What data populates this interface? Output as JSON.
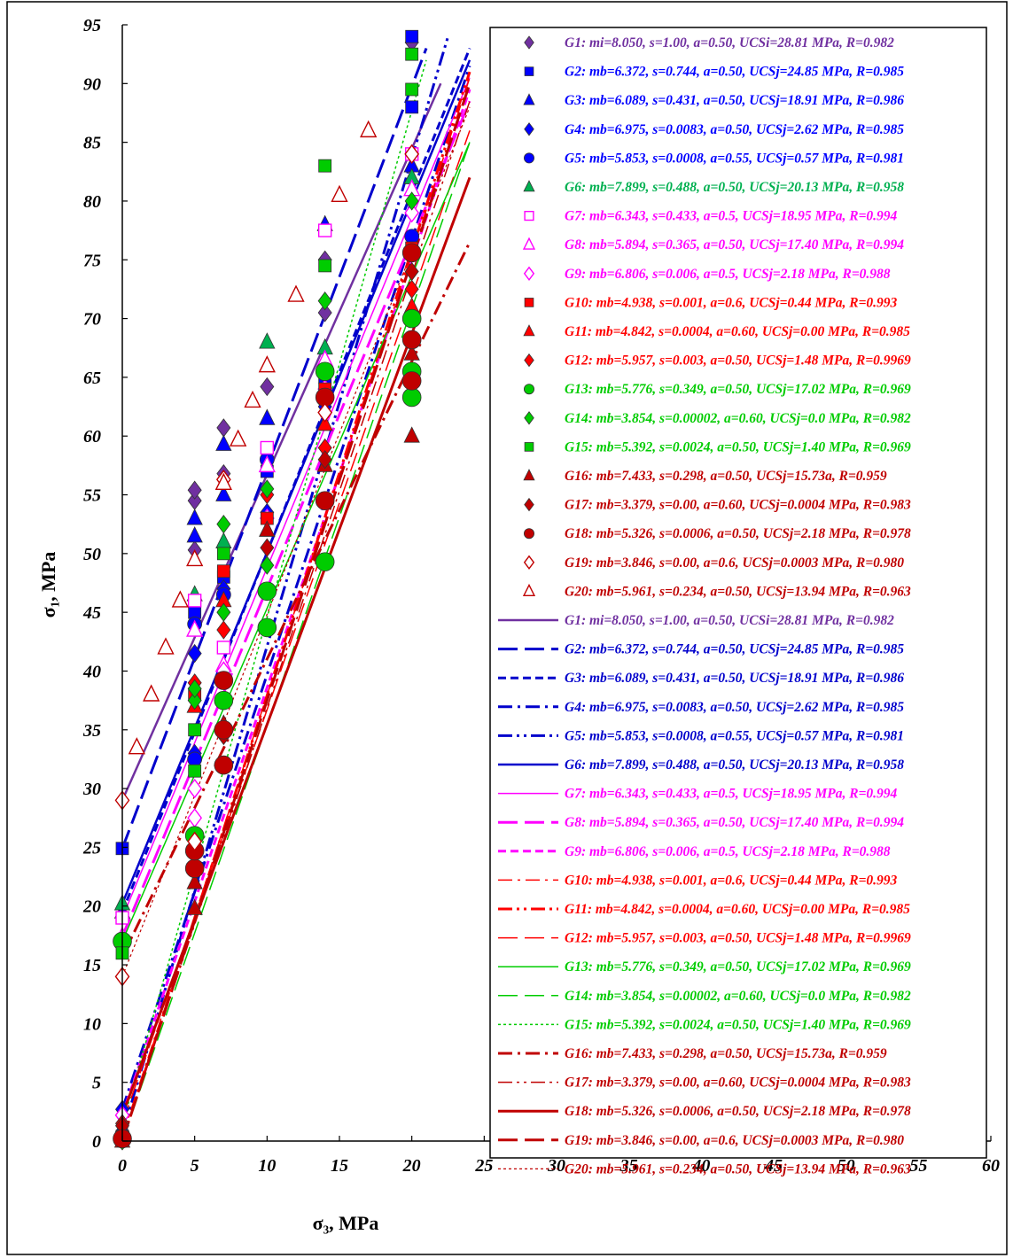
{
  "chart_data": {
    "type": "scatter",
    "xlabel": "σ₃, MPa",
    "ylabel": "σ₁, MPa",
    "xlim": [
      0,
      60
    ],
    "ylim": [
      0,
      95
    ],
    "xticks": [
      0,
      5,
      10,
      15,
      20,
      25,
      30,
      35,
      40,
      45,
      50,
      55,
      60
    ],
    "yticks": [
      0,
      5,
      10,
      15,
      20,
      25,
      30,
      35,
      40,
      45,
      50,
      55,
      60,
      65,
      70,
      75,
      80,
      85,
      90,
      95
    ],
    "grid": false,
    "legend": "right",
    "series": [
      {
        "name": "G1: mi=8.050, s=1.00, a=0.50, UCSi=28.81 MPa, R=0.982",
        "color": "#7030A0",
        "marker": "diamond",
        "x": [
          0,
          5,
          5,
          5,
          7,
          7,
          10,
          14,
          14,
          20
        ],
        "y": [
          29,
          50.3,
          54.5,
          55.4,
          56.8,
          60.7,
          64.2,
          70.5,
          75,
          93.5
        ]
      },
      {
        "name": "G2: mb=6.372, s=0.744, a=0.50, UCSj=24.85 MPa, R=0.985",
        "color": "#0000FF",
        "marker": "square",
        "x": [
          0,
          5,
          7,
          10,
          14,
          20,
          20
        ],
        "y": [
          24.9,
          45,
          48,
          57,
          65,
          88,
          94
        ]
      },
      {
        "name": "G3: mb=6.089, s=0.431, a=0.50, UCSj=18.91 MPa, R=0.986",
        "color": "#0000FF",
        "marker": "triangle",
        "x": [
          0,
          5,
          5,
          7,
          7,
          10,
          14,
          20
        ],
        "y": [
          19.5,
          51.5,
          53,
          55,
          59.3,
          61.5,
          78,
          83
        ]
      },
      {
        "name": "G4: mb=6.975, s=0.0083, a=0.50, UCSj=2.62 MPa, R=0.985",
        "color": "#0000FF",
        "marker": "diamond",
        "x": [
          0,
          5,
          5,
          7,
          10,
          14,
          20
        ],
        "y": [
          2.7,
          33,
          41.5,
          47,
          53.5,
          62.5,
          76
        ]
      },
      {
        "name": "G5: mb=5.853, s=0.0008, a=0.55, UCSj=0.57 MPa, R=0.981",
        "color": "#0000FF",
        "marker": "circle",
        "x": [
          0,
          5,
          5,
          7,
          10,
          14,
          20
        ],
        "y": [
          0.6,
          32.5,
          44,
          46.5,
          58,
          65.5,
          77
        ]
      },
      {
        "name": "G6: mb=7.899, s=0.488, a=0.50, UCSj=20.13 MPa, R=0.958",
        "color": "#00B050",
        "marker": "triangle",
        "x": [
          0,
          5,
          7,
          10,
          14,
          20
        ],
        "y": [
          20.2,
          46.5,
          51,
          68,
          67.5,
          82
        ]
      },
      {
        "name": "G7: mb=6.343, s=0.433, a=0.5, UCSj=18.95 MPa, R=0.994",
        "color": "#FF00FF",
        "marker": "square-open",
        "x": [
          0,
          5,
          7,
          10,
          14,
          20
        ],
        "y": [
          19,
          46,
          42,
          59,
          77.5,
          84
        ]
      },
      {
        "name": "G8: mb=5.894, s=0.365, a=0.50, UCSj=17.40 MPa, R=0.994",
        "color": "#FF00FF",
        "marker": "triangle-open",
        "x": [
          0,
          5,
          7,
          10,
          14,
          20
        ],
        "y": [
          17.4,
          43.5,
          40.5,
          57.5,
          66.5,
          81
        ]
      },
      {
        "name": "G9: mb=6.806, s=0.006, a=0.5, UCSj=2.18 MPa, R=0.988",
        "color": "#FF00FF",
        "marker": "diamond-open",
        "x": [
          0,
          5,
          5,
          7,
          10,
          14,
          20
        ],
        "y": [
          2.2,
          27.5,
          30,
          40,
          53,
          64,
          79
        ]
      },
      {
        "name": "G10: mb=4.938, s=0.001, a=0.6, UCSj=0.44 MPa, R=0.993",
        "color": "#FF0000",
        "marker": "square",
        "x": [
          0,
          5,
          7,
          10,
          14,
          20
        ],
        "y": [
          0.4,
          38,
          48.5,
          53,
          64,
          76
        ]
      },
      {
        "name": "G11: mb=4.842, s=0.0004, a=0.60, UCSj=0.00 MPa, R=0.985",
        "color": "#FF0000",
        "marker": "triangle",
        "x": [
          0,
          5,
          7,
          10,
          14,
          20
        ],
        "y": [
          0,
          37,
          46,
          52,
          61,
          71
        ]
      },
      {
        "name": "G12: mb=5.957, s=0.003, a=0.50, UCSj=1.48 MPa, R=0.9969",
        "color": "#FF0000",
        "marker": "diamond",
        "x": [
          0,
          5,
          7,
          10,
          14,
          20
        ],
        "y": [
          1.5,
          39,
          43.5,
          55,
          59,
          72.5
        ]
      },
      {
        "name": "G13: mb=5.776, s=0.349, a=0.50, UCSj=17.02 MPa, R=0.969",
        "color": "#00CC00",
        "marker": "circle",
        "x": [
          0,
          5,
          7,
          10,
          10,
          14,
          14,
          20,
          20,
          20
        ],
        "y": [
          17,
          26,
          37.5,
          43.7,
          46.8,
          49.3,
          65.5,
          63.3,
          65.5,
          70
        ]
      },
      {
        "name": "G14: mb=3.854, s=0.00002, a=0.60, UCSj=0.0 MPa, R=0.982",
        "color": "#00CC00",
        "marker": "diamond",
        "x": [
          0,
          5,
          5,
          7,
          7,
          10,
          10,
          14,
          20
        ],
        "y": [
          0,
          37.5,
          38.5,
          45,
          52.5,
          49,
          55.5,
          71.5,
          80
        ]
      },
      {
        "name": "G15: mb=5.392, s=0.0024, a=0.50, UCSj=1.40 MPa, R=0.969",
        "color": "#00CC00",
        "marker": "square",
        "x": [
          0,
          5,
          5,
          7,
          14,
          14,
          20,
          20
        ],
        "y": [
          16,
          31.5,
          35,
          50,
          74.5,
          83,
          89.5,
          92.5
        ]
      },
      {
        "name": "G16: mb=7.433, s=0.298, a=0.50, UCSj=15.73a, R=0.959",
        "color": "#C00000",
        "marker": "triangle",
        "x": [
          0,
          5,
          5,
          7,
          10,
          14,
          20,
          20
        ],
        "y": [
          0.3,
          19.8,
          22,
          35.5,
          52,
          57.5,
          60,
          67
        ]
      },
      {
        "name": "G17: mb=3.379, s=0.00, a=0.60, UCSj=0.0004 MPa, R=0.983",
        "color": "#C00000",
        "marker": "diamond",
        "x": [
          0,
          5,
          7,
          10,
          14,
          20
        ],
        "y": [
          1.3,
          25.5,
          34.5,
          50.5,
          58,
          74
        ]
      },
      {
        "name": "G18: mb=5.326, s=0.0006, a=0.50, UCSj=2.18 MPa, R=0.978",
        "color": "#C00000",
        "marker": "circle",
        "x": [
          0,
          5,
          5,
          7,
          7,
          7,
          14,
          14,
          20,
          20,
          20
        ],
        "y": [
          0.2,
          23.2,
          24.7,
          32,
          35,
          39.2,
          54.5,
          63.3,
          64.7,
          68.2,
          75.6
        ]
      },
      {
        "name": "G19: mb=3.846, s=0.00, a=0.6, UCSj=0.0003 MPa, R=0.980",
        "color": "#C00000",
        "marker": "diamond-open",
        "x": [
          0,
          0,
          5,
          7,
          14,
          20
        ],
        "y": [
          14,
          29,
          25.5,
          56.3,
          62,
          84
        ]
      },
      {
        "name": "G20: mb=5.961, s=0.234, a=0.50, UCSj=13.94 MPa, R=0.963",
        "color": "#C00000",
        "marker": "triangle-open",
        "x": [
          1,
          2,
          3,
          4,
          5,
          7,
          8,
          9,
          10,
          12,
          15,
          17
        ],
        "y": [
          33.5,
          38,
          42,
          46,
          49.5,
          56,
          59.7,
          63,
          66,
          72,
          80.5,
          86
        ]
      }
    ],
    "fit_lines": [
      {
        "name": "G1: mi=8.050, s=1.00, a=0.50, UCSi=28.81 MPa, R=0.982",
        "color": "#7030A0",
        "dash": "solid",
        "width": 2.5,
        "x": [
          0,
          22
        ],
        "y": [
          29,
          90
        ]
      },
      {
        "name": "G2: mb=6.372, s=0.744, a=0.50, UCSj=24.85 MPa, R=0.985",
        "color": "#0000CC",
        "dash": "longdash",
        "width": 3,
        "x": [
          0,
          21
        ],
        "y": [
          24.9,
          93
        ]
      },
      {
        "name": "G3: mb=6.089, s=0.431, a=0.50, UCSj=18.91 MPa, R=0.986",
        "color": "#0000CC",
        "dash": "dash",
        "width": 3,
        "x": [
          0,
          24
        ],
        "y": [
          19.5,
          93
        ]
      },
      {
        "name": "G4: mb=6.975, s=0.0083, a=0.50, UCSj=2.62 MPa, R=0.985",
        "color": "#0000CC",
        "dash": "dashdot",
        "width": 3,
        "x": [
          0,
          24
        ],
        "y": [
          2.7,
          91.5
        ]
      },
      {
        "name": "G5: mb=5.853, s=0.0008, a=0.55, UCSj=0.57 MPa, R=0.981",
        "color": "#0000CC",
        "dash": "dashdotdot",
        "width": 3,
        "x": [
          0,
          22.5
        ],
        "y": [
          0.6,
          94
        ]
      },
      {
        "name": "G6: mb=7.899, s=0.488, a=0.50, UCSj=20.13 MPa, R=0.958",
        "color": "#0000CC",
        "dash": "solid",
        "width": 2.5,
        "x": [
          0,
          24
        ],
        "y": [
          20.2,
          92
        ]
      },
      {
        "name": "G7: mb=6.343, s=0.433, a=0.5, UCSj=18.95 MPa, R=0.994",
        "color": "#FF00FF",
        "dash": "solid",
        "width": 1.5,
        "x": [
          0,
          24
        ],
        "y": [
          19,
          90.5
        ]
      },
      {
        "name": "G8: mb=5.894, s=0.365, a=0.50, UCSj=17.40 MPa, R=0.994",
        "color": "#FF00FF",
        "dash": "longdash",
        "width": 3,
        "x": [
          0,
          24
        ],
        "y": [
          17.4,
          88.5
        ]
      },
      {
        "name": "G9: mb=6.806, s=0.006, a=0.5, UCSj=2.18 MPa, R=0.988",
        "color": "#FF00FF",
        "dash": "dash",
        "width": 3,
        "x": [
          0,
          24
        ],
        "y": [
          2.2,
          89.5
        ]
      },
      {
        "name": "G10: mb=4.938, s=0.001, a=0.6, UCSj=0.44 MPa, R=0.993",
        "color": "#FF0000",
        "dash": "dashdot",
        "width": 1.5,
        "x": [
          0,
          24
        ],
        "y": [
          0.4,
          90.5
        ]
      },
      {
        "name": "G11: mb=4.842, s=0.0004, a=0.60, UCSj=0.00 MPa, R=0.985",
        "color": "#FF0000",
        "dash": "dashdotdot",
        "width": 3,
        "x": [
          0,
          24
        ],
        "y": [
          0,
          91
        ]
      },
      {
        "name": "G12: mb=5.957, s=0.003, a=0.50, UCSj=1.48 MPa, R=0.9969",
        "color": "#FF0000",
        "dash": "longdash",
        "width": 1.5,
        "x": [
          0,
          24
        ],
        "y": [
          1.5,
          86
        ]
      },
      {
        "name": "G13: mb=5.776, s=0.349, a=0.50, UCSj=17.02 MPa, R=0.969",
        "color": "#00CC00",
        "dash": "solid",
        "width": 1.5,
        "x": [
          0,
          24
        ],
        "y": [
          17,
          85
        ]
      },
      {
        "name": "G14: mb=3.854, s=0.00002, a=0.60, UCSj=0.0 MPa, R=0.982",
        "color": "#00CC00",
        "dash": "longdash",
        "width": 1.5,
        "x": [
          0,
          24
        ],
        "y": [
          0,
          85
        ]
      },
      {
        "name": "G15: mb=5.392, s=0.0024, a=0.50, UCSj=1.40 MPa, R=0.969",
        "color": "#00CC00",
        "dash": "dot",
        "width": 1.5,
        "x": [
          0,
          21
        ],
        "y": [
          1.4,
          92
        ]
      },
      {
        "name": "G16: mb=7.433, s=0.298, a=0.50, UCSj=15.73a, R=0.959",
        "color": "#C00000",
        "dash": "dashdot",
        "width": 3,
        "x": [
          0,
          24
        ],
        "y": [
          15.7,
          76.5
        ]
      },
      {
        "name": "G17: mb=3.379, s=0.00, a=0.60, UCSj=0.0004 MPa, R=0.983",
        "color": "#C00000",
        "dash": "dashdotdot",
        "width": 1.5,
        "x": [
          0,
          24
        ],
        "y": [
          0,
          88.5
        ]
      },
      {
        "name": "G18: mb=5.326, s=0.0006, a=0.50, UCSj=2.18 MPa, R=0.978",
        "color": "#C00000",
        "dash": "solid",
        "width": 3,
        "x": [
          0,
          24
        ],
        "y": [
          2.2,
          82
        ]
      },
      {
        "name": "G19: mb=3.846, s=0.00, a=0.6, UCSj=0.0003 MPa, R=0.980",
        "color": "#C00000",
        "dash": "longdash",
        "width": 3,
        "x": [
          0,
          24
        ],
        "y": [
          0,
          90
        ]
      },
      {
        "name": "G20: mb=5.961, s=0.234, a=0.50, UCSj=13.94 MPa, R=0.963",
        "color": "#C00000",
        "dash": "dot",
        "width": 1.2,
        "x": [
          0,
          24
        ],
        "y": [
          14,
          88
        ]
      }
    ]
  }
}
